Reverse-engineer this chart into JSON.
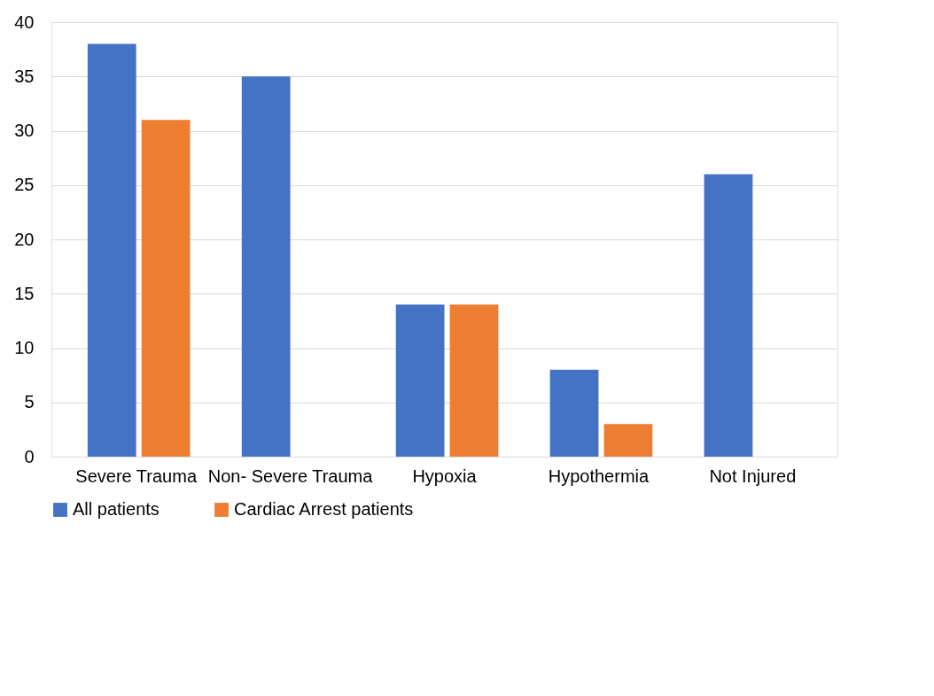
{
  "chart_data": {
    "type": "bar",
    "categories": [
      "Severe Trauma",
      "Non- Severe Trauma",
      "Hypoxia",
      "Hypothermia",
      "Not Injured"
    ],
    "series": [
      {
        "name": "All patients",
        "color": "#4472c4",
        "values": [
          38,
          35,
          14,
          8,
          26
        ]
      },
      {
        "name": "Cardiac Arrest patients",
        "color": "#ed7d31",
        "values": [
          31,
          0,
          14,
          3,
          0
        ]
      }
    ],
    "ylim": [
      0,
      40
    ],
    "yticks": [
      0,
      5,
      10,
      15,
      20,
      25,
      30,
      35,
      40
    ],
    "grid": "y",
    "legend": "bottom"
  }
}
